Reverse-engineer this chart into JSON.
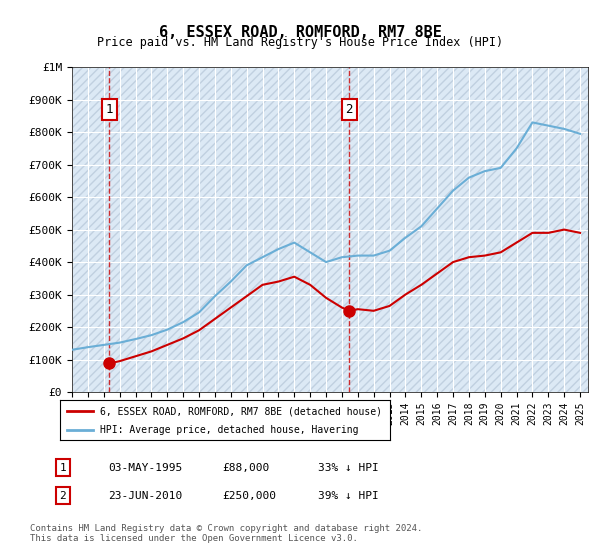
{
  "title": "6, ESSEX ROAD, ROMFORD, RM7 8BE",
  "subtitle": "Price paid vs. HM Land Registry's House Price Index (HPI)",
  "bg_color": "#dce9f5",
  "plot_bg_color": "#dce9f5",
  "hatch_color": "#c0d0e0",
  "hpi_color": "#6aaed6",
  "price_color": "#cc0000",
  "vline_color": "#cc0000",
  "ylim": [
    0,
    1000000
  ],
  "yticks": [
    0,
    100000,
    200000,
    300000,
    400000,
    500000,
    600000,
    700000,
    800000,
    900000,
    1000000
  ],
  "ytick_labels": [
    "£0",
    "£100K",
    "£200K",
    "£300K",
    "£400K",
    "£500K",
    "£600K",
    "£700K",
    "£800K",
    "£900K",
    "£1M"
  ],
  "xlim_start": 1993.0,
  "xlim_end": 2025.5,
  "purchase1_x": 1995.34,
  "purchase1_y": 88000,
  "purchase2_x": 2010.47,
  "purchase2_y": 250000,
  "legend_label_price": "6, ESSEX ROAD, ROMFORD, RM7 8BE (detached house)",
  "legend_label_hpi": "HPI: Average price, detached house, Havering",
  "table_rows": [
    {
      "num": "1",
      "date": "03-MAY-1995",
      "price": "£88,000",
      "note": "33% ↓ HPI"
    },
    {
      "num": "2",
      "date": "23-JUN-2010",
      "price": "£250,000",
      "note": "39% ↓ HPI"
    }
  ],
  "footer": "Contains HM Land Registry data © Crown copyright and database right 2024.\nThis data is licensed under the Open Government Licence v3.0.",
  "hpi_years": [
    1993,
    1994,
    1995,
    1996,
    1997,
    1998,
    1999,
    2000,
    2001,
    2002,
    2003,
    2004,
    2005,
    2006,
    2007,
    2008,
    2009,
    2010,
    2011,
    2012,
    2013,
    2014,
    2015,
    2016,
    2017,
    2018,
    2019,
    2020,
    2021,
    2022,
    2023,
    2024,
    2025
  ],
  "hpi_values": [
    130000,
    138000,
    145000,
    152000,
    163000,
    175000,
    192000,
    215000,
    245000,
    295000,
    340000,
    390000,
    415000,
    440000,
    460000,
    430000,
    400000,
    415000,
    420000,
    420000,
    435000,
    475000,
    510000,
    565000,
    620000,
    660000,
    680000,
    690000,
    750000,
    830000,
    820000,
    810000,
    795000
  ]
}
